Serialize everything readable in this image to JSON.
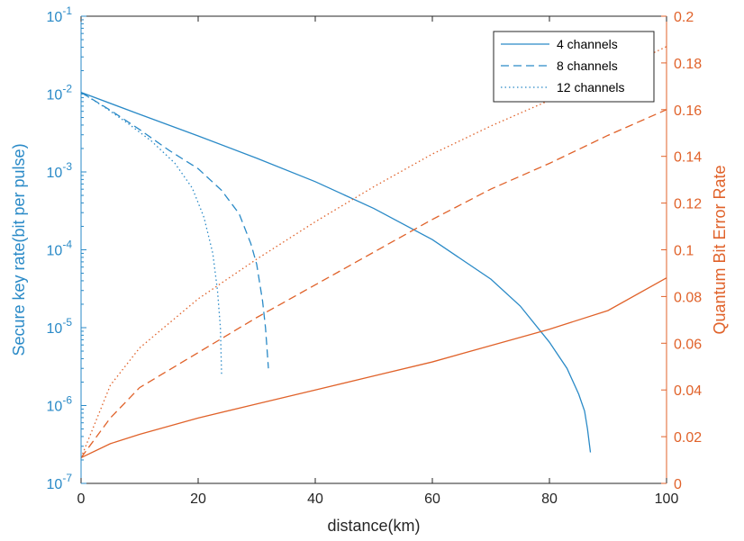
{
  "chart_data": {
    "type": "line",
    "xlabel": "distance(km)",
    "ylabel_left": "Secure key rate(bit per pulse)",
    "ylabel_right": "Quantum Bit Error Rate",
    "xlim": [
      0,
      100
    ],
    "x_ticks": [
      0,
      20,
      40,
      60,
      80,
      100
    ],
    "x_tick_labels": [
      "0",
      "20",
      "40",
      "60",
      "80",
      "100"
    ],
    "left_axis": {
      "scale": "log",
      "ylim": [
        1e-07,
        0.1
      ],
      "tick_exponents": [
        -7,
        -6,
        -5,
        -4,
        -3,
        -2,
        -1
      ],
      "tick_base": "10",
      "color": "#2a8ac7"
    },
    "right_axis": {
      "scale": "linear",
      "ylim": [
        0,
        0.2
      ],
      "ticks": [
        0,
        0.02,
        0.04,
        0.06,
        0.08,
        0.1,
        0.12,
        0.14,
        0.16,
        0.18,
        0.2
      ],
      "tick_labels": [
        "0",
        "0.02",
        "0.04",
        "0.06",
        "0.08",
        "0.1",
        "0.12",
        "0.14",
        "0.16",
        "0.18",
        "0.2"
      ],
      "color": "#e0622a"
    },
    "grid": false,
    "legend": {
      "placement": "top-right",
      "entries": [
        {
          "label": "4 channels",
          "dash": "solid"
        },
        {
          "label": "8 channels",
          "dash": "dashed"
        },
        {
          "label": "12 channels",
          "dash": "dotted"
        }
      ]
    },
    "series": [
      {
        "axis": "left",
        "dash": "solid",
        "x": [
          0,
          10,
          20,
          30,
          40,
          50,
          60,
          70,
          75,
          80,
          83,
          85,
          86,
          86.5,
          87
        ],
        "y": [
          0.0105,
          0.0055,
          0.0029,
          0.0015,
          0.00075,
          0.00034,
          0.000135,
          4.2e-05,
          1.9e-05,
          6.5e-06,
          3e-06,
          1.4e-06,
          8.5e-07,
          5e-07,
          2.5e-07
        ]
      },
      {
        "axis": "left",
        "dash": "dashed",
        "x": [
          0,
          5,
          10,
          15,
          20,
          24,
          27,
          29,
          30,
          31,
          31.5,
          32
        ],
        "y": [
          0.0105,
          0.0062,
          0.0035,
          0.0019,
          0.0011,
          0.00058,
          0.00029,
          0.00012,
          6.5e-05,
          2.2e-05,
          1e-05,
          3e-06
        ]
      },
      {
        "axis": "left",
        "dash": "dotted",
        "x": [
          0,
          4,
          8,
          12,
          16,
          19,
          21,
          22.5,
          23.3,
          23.8,
          24
        ],
        "y": [
          0.0105,
          0.0068,
          0.0042,
          0.0025,
          0.0013,
          0.00062,
          0.00026,
          9e-05,
          3e-05,
          1e-05,
          2.5e-06
        ]
      },
      {
        "axis": "right",
        "dash": "solid",
        "x": [
          0,
          5,
          10,
          20,
          30,
          40,
          50,
          60,
          70,
          80,
          90,
          100
        ],
        "y": [
          0.011,
          0.017,
          0.021,
          0.028,
          0.034,
          0.04,
          0.046,
          0.052,
          0.059,
          0.066,
          0.074,
          0.088
        ]
      },
      {
        "axis": "right",
        "dash": "dashed",
        "x": [
          0,
          5,
          10,
          20,
          30,
          40,
          50,
          60,
          70,
          80,
          90,
          100
        ],
        "y": [
          0.011,
          0.028,
          0.041,
          0.056,
          0.071,
          0.085,
          0.099,
          0.113,
          0.126,
          0.137,
          0.149,
          0.16
        ]
      },
      {
        "axis": "right",
        "dash": "dotted",
        "x": [
          0,
          5,
          10,
          20,
          30,
          40,
          50,
          60,
          70,
          80,
          90,
          100
        ],
        "y": [
          0.011,
          0.042,
          0.058,
          0.079,
          0.096,
          0.112,
          0.127,
          0.141,
          0.153,
          0.164,
          0.175,
          0.187
        ]
      }
    ]
  }
}
